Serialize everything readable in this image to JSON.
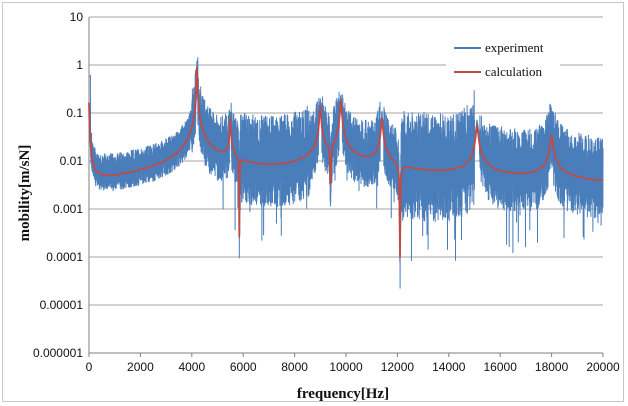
{
  "chart_data": {
    "type": "line",
    "xlabel": "frequency[Hz]",
    "ylabel": "mobility[m/sN]",
    "xlim": [
      0,
      20000
    ],
    "ylim": [
      1e-06,
      10
    ],
    "y_scale": "log",
    "grid": "horizontal",
    "legend_position": "top-right",
    "x_ticks": [
      "0",
      "2000",
      "4000",
      "6000",
      "8000",
      "10000",
      "12000",
      "14000",
      "16000",
      "18000",
      "20000"
    ],
    "y_ticks": [
      "10",
      "1",
      "0.1",
      "0.01",
      "0.001",
      "0.0001",
      "0.00001",
      "0.000001"
    ],
    "series": [
      {
        "name": "experiment",
        "color": "#4a7ebb"
      },
      {
        "name": "calculation",
        "color": "#be4b48"
      }
    ],
    "resonances": [
      {
        "x": 4200,
        "y": 0.9
      },
      {
        "x": 5500,
        "y": 0.07
      },
      {
        "x": 9000,
        "y": 0.13
      },
      {
        "x": 9800,
        "y": 0.18
      },
      {
        "x": 11400,
        "y": 0.07
      },
      {
        "x": 15100,
        "y": 0.05
      },
      {
        "x": 18000,
        "y": 0.03
      }
    ],
    "antiresonances": [
      {
        "x": 5850,
        "y": 2e-05
      },
      {
        "x": 9400,
        "y": 0.00013
      },
      {
        "x": 12100,
        "y": 1e-05
      }
    ]
  }
}
